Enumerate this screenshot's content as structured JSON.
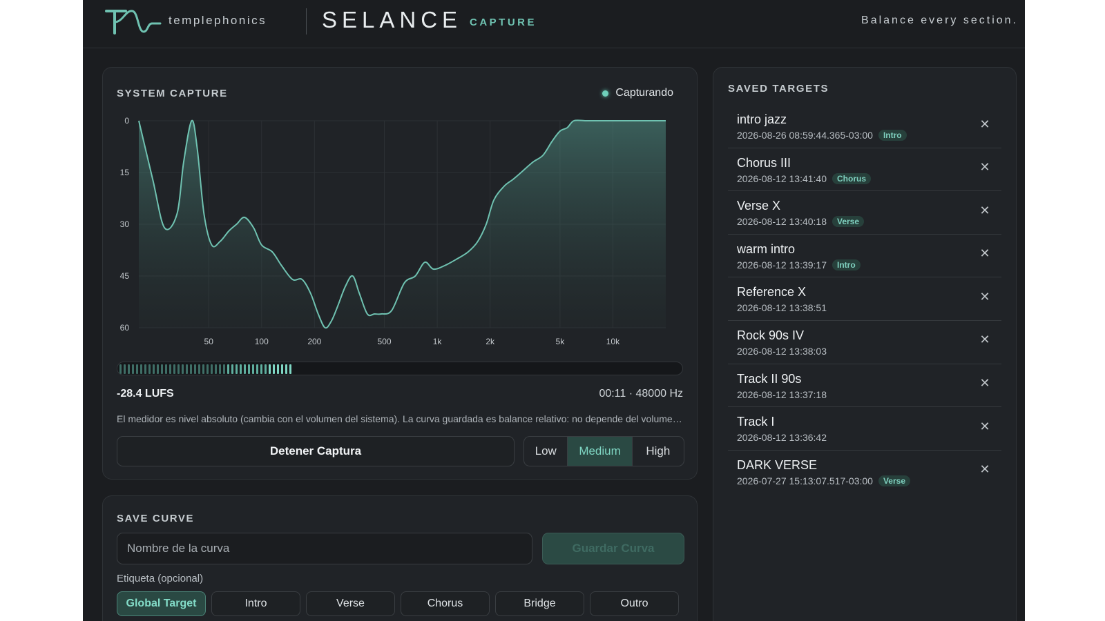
{
  "header": {
    "brand": "templephonics",
    "product": "SELANCE",
    "product_sub": "CAPTURE",
    "tagline": "Balance every section."
  },
  "colors": {
    "accent": "#6fc2b1",
    "background": "#1b1d20",
    "panel": "#202327"
  },
  "capture": {
    "title": "SYSTEM CAPTURE",
    "status": "Capturando",
    "lufs": "-28.4 LUFS",
    "time_rate": "00:11 · 48000 Hz",
    "level": 0.42,
    "note": "El medidor es nivel absoluto (cambia con el volumen del sistema). La curva guardada es balance relativo: no depende del volumen del sistema.",
    "stop_label": "Detener Captura",
    "smoothing": {
      "options": [
        "Low",
        "Medium",
        "High"
      ],
      "selected": "Medium"
    }
  },
  "chart_data": {
    "type": "area",
    "x_scale": "log",
    "xlim": [
      20,
      20000
    ],
    "ylim": [
      0,
      60
    ],
    "y_inverted": true,
    "y_ticks": [
      0,
      15,
      30,
      45,
      60
    ],
    "x_ticks": [
      {
        "value": 50,
        "label": "50"
      },
      {
        "value": 100,
        "label": "100"
      },
      {
        "value": 200,
        "label": "200"
      },
      {
        "value": 500,
        "label": "500"
      },
      {
        "value": 1000,
        "label": "1k"
      },
      {
        "value": 2000,
        "label": "2k"
      },
      {
        "value": 5000,
        "label": "5k"
      },
      {
        "value": 10000,
        "label": "10k"
      }
    ],
    "grid": true,
    "x": [
      20,
      24,
      28,
      33,
      36,
      40,
      43,
      47,
      52,
      58,
      65,
      72,
      80,
      90,
      100,
      115,
      130,
      150,
      170,
      190,
      210,
      230,
      250,
      270,
      300,
      330,
      360,
      400,
      440,
      480,
      550,
      650,
      750,
      850,
      950,
      1100,
      1300,
      1500,
      1700,
      1900,
      2100,
      2400,
      2700,
      3000,
      3500,
      4000,
      4500,
      5000,
      5500,
      6000,
      7000,
      8000,
      9000,
      10000,
      11000,
      12000,
      14000,
      16000,
      18000,
      20000
    ],
    "y": [
      0,
      17,
      31,
      27,
      12,
      0,
      8,
      27,
      36,
      35,
      32,
      30,
      28,
      31,
      36,
      38,
      42,
      46,
      46,
      50,
      56,
      60,
      58,
      54,
      48,
      45,
      50,
      56,
      56,
      56,
      55,
      47,
      45,
      41,
      43,
      42,
      40,
      38,
      35,
      30,
      23,
      19,
      17,
      15,
      12,
      10,
      6,
      3,
      2,
      0,
      0,
      0,
      0,
      0,
      0,
      0,
      0,
      0,
      0,
      0
    ]
  },
  "save": {
    "title": "SAVE CURVE",
    "name_placeholder": "Nombre de la curva",
    "save_label": "Guardar Curva",
    "tag_label": "Etiqueta (opcional)",
    "tags": [
      "Global Target",
      "Intro",
      "Verse",
      "Chorus",
      "Bridge",
      "Outro"
    ],
    "selected_tag": "Global Target"
  },
  "targets": {
    "title": "SAVED TARGETS",
    "items": [
      {
        "name": "intro jazz",
        "date": "2026-08-26 08:59:44.365-03:00",
        "tag": "Intro"
      },
      {
        "name": "Chorus III",
        "date": "2026-08-12 13:41:40",
        "tag": "Chorus"
      },
      {
        "name": "Verse X",
        "date": "2026-08-12 13:40:18",
        "tag": "Verse"
      },
      {
        "name": "warm intro",
        "date": "2026-08-12 13:39:17",
        "tag": "Intro"
      },
      {
        "name": "Reference X",
        "date": "2026-08-12 13:38:51",
        "tag": ""
      },
      {
        "name": "Rock 90s IV",
        "date": "2026-08-12 13:38:03",
        "tag": ""
      },
      {
        "name": "Track II 90s",
        "date": "2026-08-12 13:37:18",
        "tag": ""
      },
      {
        "name": "Track I",
        "date": "2026-08-12 13:36:42",
        "tag": ""
      },
      {
        "name": "DARK VERSE",
        "date": "2026-07-27 15:13:07.517-03:00",
        "tag": "Verse"
      }
    ],
    "remove_icon": "close-icon"
  }
}
